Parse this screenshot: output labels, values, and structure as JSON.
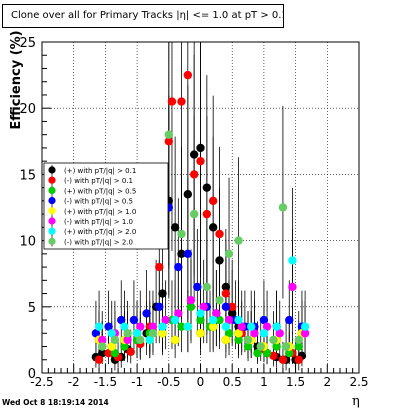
{
  "chart_data": {
    "type": "scatter",
    "title": "Clone  over all for Primary Tracks  |η| <= 1.0 at pT > 0.11",
    "xlabel": "η",
    "ylabel": "Efficiency (%)",
    "xlim": [
      -2.5,
      2.5
    ],
    "ylim": [
      0,
      25
    ],
    "xticks": [
      "-2.5",
      "-2",
      "-1.5",
      "-1",
      "-0.5",
      "0",
      "0.5",
      "1",
      "1.5",
      "2",
      "2.5"
    ],
    "yticks": [
      "0",
      "5",
      "10",
      "15",
      "20",
      "25"
    ],
    "grid": true,
    "legend_position": "middle-left",
    "series": [
      {
        "name": "(+) with pT/|q| > 0.1",
        "color": "#000000",
        "points": [
          [
            -1.65,
            1.2
          ],
          [
            -1.55,
            1.5
          ],
          [
            -1.35,
            1.0
          ],
          [
            -1.25,
            1.2
          ],
          [
            -1.15,
            1.8
          ],
          [
            -1.0,
            2.5
          ],
          [
            -0.85,
            3.0
          ],
          [
            -0.7,
            5.0
          ],
          [
            -0.6,
            6.0
          ],
          [
            -0.5,
            13.0
          ],
          [
            -0.4,
            11.0
          ],
          [
            -0.3,
            9.0
          ],
          [
            -0.2,
            13.5
          ],
          [
            -0.1,
            16.5
          ],
          [
            0.0,
            17.0
          ],
          [
            0.1,
            14.0
          ],
          [
            0.2,
            11.0
          ],
          [
            0.3,
            8.5
          ],
          [
            0.4,
            6.5
          ],
          [
            0.5,
            4.5
          ],
          [
            0.6,
            3.5
          ],
          [
            0.75,
            2.5
          ],
          [
            0.9,
            2.0
          ],
          [
            1.05,
            1.5
          ],
          [
            1.2,
            1.2
          ],
          [
            1.35,
            1.0
          ],
          [
            1.5,
            1.0
          ],
          [
            1.6,
            1.3
          ]
        ]
      },
      {
        "name": "(-) with pT/|q| > 0.1",
        "color": "#ff0000",
        "points": [
          [
            -1.6,
            1.0
          ],
          [
            -1.45,
            1.5
          ],
          [
            -1.3,
            1.2
          ],
          [
            -1.1,
            1.6
          ],
          [
            -0.95,
            2.2
          ],
          [
            -0.8,
            3.5
          ],
          [
            -0.65,
            8.0
          ],
          [
            -0.5,
            17.5
          ],
          [
            -0.45,
            20.5
          ],
          [
            -0.3,
            20.5
          ],
          [
            -0.2,
            22.5
          ],
          [
            -0.1,
            15.0
          ],
          [
            0.0,
            16.0
          ],
          [
            0.1,
            12.0
          ],
          [
            0.2,
            13.0
          ],
          [
            0.3,
            10.5
          ],
          [
            0.4,
            6.0
          ],
          [
            0.5,
            5.0
          ],
          [
            0.65,
            3.0
          ],
          [
            0.8,
            2.5
          ],
          [
            1.0,
            1.8
          ],
          [
            1.15,
            1.3
          ],
          [
            1.3,
            1.0
          ],
          [
            1.45,
            1.5
          ],
          [
            1.55,
            1.0
          ]
        ]
      },
      {
        "name": "(+) with pT/|q| > 0.5",
        "color": "#00cc00",
        "points": [
          [
            -1.55,
            2.0
          ],
          [
            -1.35,
            1.5
          ],
          [
            -1.2,
            2.0
          ],
          [
            -1.0,
            2.5
          ],
          [
            -0.8,
            3.0
          ],
          [
            -0.6,
            3.5
          ],
          [
            -0.45,
            4.0
          ],
          [
            -0.3,
            3.5
          ],
          [
            -0.15,
            5.0
          ],
          [
            0.0,
            4.0
          ],
          [
            0.15,
            3.5
          ],
          [
            0.3,
            4.0
          ],
          [
            0.45,
            3.0
          ],
          [
            0.6,
            2.5
          ],
          [
            0.75,
            2.0
          ],
          [
            0.9,
            1.5
          ],
          [
            1.05,
            1.5
          ],
          [
            1.2,
            2.0
          ],
          [
            1.4,
            1.5
          ],
          [
            1.55,
            2.0
          ]
        ]
      },
      {
        "name": "(-) with pT/|q| > 0.5",
        "color": "#0000ff",
        "points": [
          [
            -1.65,
            3.0
          ],
          [
            -1.45,
            3.5
          ],
          [
            -1.25,
            4.0
          ],
          [
            -1.05,
            4.0
          ],
          [
            -0.85,
            4.5
          ],
          [
            -0.65,
            5.0
          ],
          [
            -0.5,
            12.5
          ],
          [
            -0.35,
            8.0
          ],
          [
            -0.2,
            9.0
          ],
          [
            -0.05,
            6.5
          ],
          [
            0.1,
            5.0
          ],
          [
            0.25,
            4.5
          ],
          [
            0.4,
            5.0
          ],
          [
            0.55,
            4.0
          ],
          [
            0.7,
            3.5
          ],
          [
            0.85,
            3.5
          ],
          [
            1.0,
            4.0
          ],
          [
            1.2,
            3.5
          ],
          [
            1.4,
            4.0
          ],
          [
            1.6,
            3.5
          ]
        ]
      },
      {
        "name": "(+) with pT/|q| > 1.0",
        "color": "#ffff00",
        "points": [
          [
            -1.6,
            2.5
          ],
          [
            -1.4,
            2.0
          ],
          [
            -1.2,
            2.5
          ],
          [
            -1.0,
            3.0
          ],
          [
            -0.8,
            2.5
          ],
          [
            -0.6,
            3.0
          ],
          [
            -0.4,
            2.5
          ],
          [
            -0.2,
            3.5
          ],
          [
            0.0,
            3.0
          ],
          [
            0.2,
            3.5
          ],
          [
            0.4,
            2.5
          ],
          [
            0.6,
            3.0
          ],
          [
            0.8,
            2.5
          ],
          [
            1.0,
            2.0
          ],
          [
            1.2,
            2.5
          ],
          [
            1.4,
            2.0
          ],
          [
            1.6,
            3.0
          ]
        ]
      },
      {
        "name": "(-) with pT/|q| > 1.0",
        "color": "#ff00ff",
        "points": [
          [
            -1.55,
            2.5
          ],
          [
            -1.35,
            3.0
          ],
          [
            -1.15,
            2.5
          ],
          [
            -0.95,
            3.5
          ],
          [
            -0.75,
            3.5
          ],
          [
            -0.55,
            4.0
          ],
          [
            -0.35,
            4.5
          ],
          [
            -0.15,
            5.5
          ],
          [
            0.05,
            5.0
          ],
          [
            0.25,
            4.5
          ],
          [
            0.45,
            4.0
          ],
          [
            0.65,
            3.5
          ],
          [
            0.85,
            3.0
          ],
          [
            1.05,
            3.5
          ],
          [
            1.25,
            3.0
          ],
          [
            1.45,
            6.5
          ],
          [
            1.65,
            3.0
          ]
        ]
      },
      {
        "name": "(+) with pT/|q| > 2.0",
        "color": "#00ffff",
        "points": [
          [
            -1.6,
            3.5
          ],
          [
            -1.4,
            3.0
          ],
          [
            -1.2,
            3.5
          ],
          [
            -1.0,
            3.0
          ],
          [
            -0.8,
            2.5
          ],
          [
            -0.6,
            3.5
          ],
          [
            -0.4,
            4.0
          ],
          [
            -0.2,
            3.5
          ],
          [
            0.0,
            4.5
          ],
          [
            0.2,
            4.0
          ],
          [
            0.4,
            3.5
          ],
          [
            0.6,
            4.0
          ],
          [
            0.8,
            3.5
          ],
          [
            1.0,
            3.0
          ],
          [
            1.2,
            3.5
          ],
          [
            1.45,
            8.5
          ],
          [
            1.65,
            3.5
          ]
        ]
      },
      {
        "name": "(-) with pT/|q| > 2.0",
        "color": "#66cc66",
        "points": [
          [
            -1.55,
            2.0
          ],
          [
            -1.35,
            2.5
          ],
          [
            -1.15,
            3.0
          ],
          [
            -0.95,
            2.5
          ],
          [
            -0.75,
            3.0
          ],
          [
            -0.5,
            18.0
          ],
          [
            -0.3,
            10.5
          ],
          [
            -0.1,
            12.0
          ],
          [
            0.1,
            6.5
          ],
          [
            0.3,
            5.5
          ],
          [
            0.45,
            9.0
          ],
          [
            0.6,
            10.0
          ],
          [
            0.75,
            2.5
          ],
          [
            0.95,
            2.0
          ],
          [
            1.15,
            2.5
          ],
          [
            1.35,
            2.0
          ],
          [
            1.3,
            12.5
          ],
          [
            1.55,
            2.5
          ]
        ]
      }
    ]
  },
  "footer": {
    "timestamp": "Wed Oct  8 18:19:14 2014"
  }
}
